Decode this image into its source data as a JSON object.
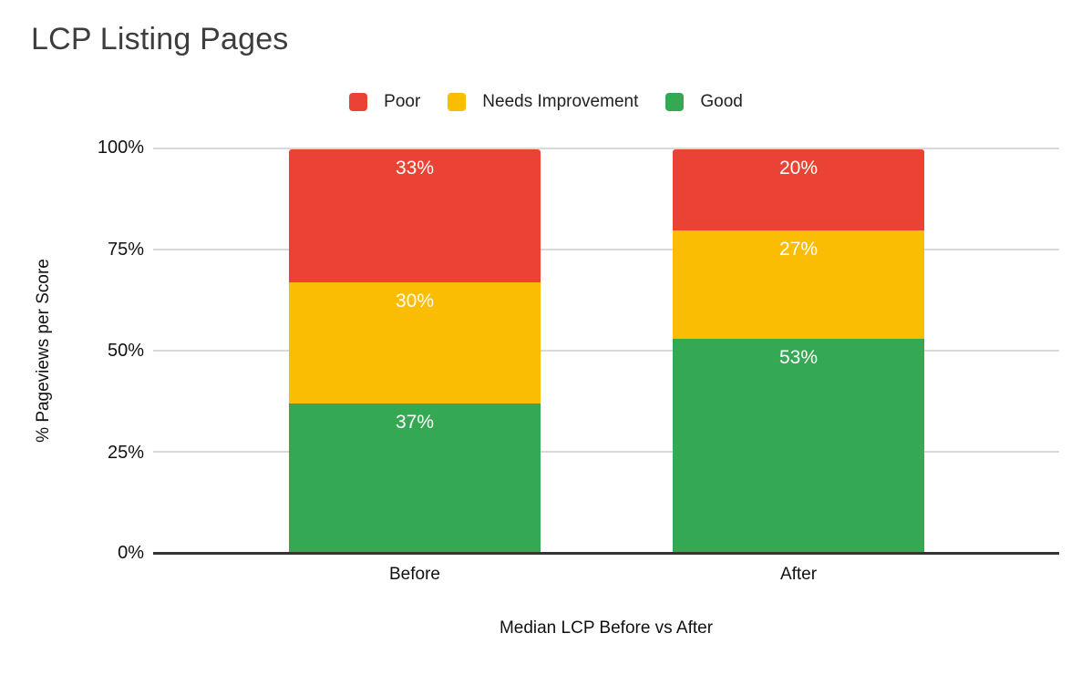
{
  "title": "LCP Listing Pages",
  "legend": {
    "items": [
      {
        "label": "Poor",
        "color": "#EA4335"
      },
      {
        "label": "Needs Improvement",
        "color": "#FBBC04"
      },
      {
        "label": "Good",
        "color": "#34A853"
      }
    ]
  },
  "colors": {
    "poor": "#EA4335",
    "needs_improvement": "#FBBC04",
    "good": "#34A853",
    "gridline": "#d9d9d9",
    "axis": "#333333",
    "title_text": "#3d3d3d",
    "axis_text": "#111111",
    "bar_label_text": "#ffffff"
  },
  "chart_data": {
    "type": "bar",
    "stacked": true,
    "stacked_total": 100,
    "categories": [
      "Before",
      "After"
    ],
    "series": [
      {
        "name": "Poor",
        "color": "#EA4335",
        "values": [
          33,
          20
        ]
      },
      {
        "name": "Needs Improvement",
        "color": "#FBBC04",
        "values": [
          30,
          27
        ]
      },
      {
        "name": "Good",
        "color": "#34A853",
        "values": [
          37,
          53
        ]
      }
    ],
    "title": "LCP Listing Pages",
    "xlabel": "Median LCP Before vs After",
    "ylabel": "% Pageviews per Score",
    "yticks": [
      "0%",
      "25%",
      "50%",
      "75%",
      "100%"
    ],
    "ylim": [
      0,
      100
    ],
    "value_suffix": "%",
    "grid": true,
    "legend_position": "top",
    "bar_label_position": "inside-top"
  }
}
